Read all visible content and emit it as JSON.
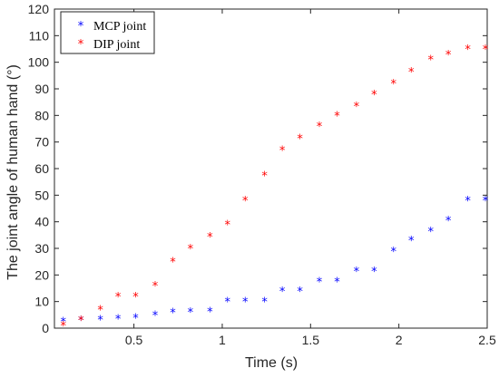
{
  "chart_data": {
    "type": "scatter",
    "xlabel": "Time (s)",
    "ylabel": "The joint angle of human hand (°)",
    "xlim": [
      0.05,
      2.5
    ],
    "ylim": [
      0,
      120
    ],
    "xticks": [
      0.5,
      1,
      1.5,
      2,
      2.5
    ],
    "yticks": [
      0,
      10,
      20,
      30,
      40,
      50,
      60,
      70,
      80,
      90,
      100,
      110,
      120
    ],
    "xtick_labels": [
      "0.5",
      "1",
      "1.5",
      "2",
      "2.5"
    ],
    "ytick_labels": [
      "0",
      "10",
      "20",
      "30",
      "40",
      "50",
      "60",
      "70",
      "80",
      "90",
      "100",
      "110",
      "120"
    ],
    "grid": false,
    "legend_position": "top-left",
    "marker": "*",
    "series": [
      {
        "name": "MCP joint",
        "color": "#0000ff",
        "x": [
          0.1,
          0.2,
          0.31,
          0.41,
          0.51,
          0.62,
          0.72,
          0.82,
          0.93,
          1.03,
          1.13,
          1.24,
          1.34,
          1.44,
          1.55,
          1.65,
          1.76,
          1.86,
          1.97,
          2.07,
          2.18,
          2.28,
          2.39,
          2.49
        ],
        "y": [
          2.5,
          3,
          3.2,
          3.5,
          4,
          5,
          6,
          6.2,
          6.3,
          10,
          10,
          10,
          14,
          14,
          17.5,
          17.5,
          21.5,
          21.5,
          29,
          33,
          36.5,
          40.5,
          48,
          48
        ]
      },
      {
        "name": "DIP joint",
        "color": "#ff0000",
        "x": [
          0.1,
          0.2,
          0.31,
          0.41,
          0.51,
          0.62,
          0.72,
          0.82,
          0.93,
          1.03,
          1.13,
          1.24,
          1.34,
          1.44,
          1.55,
          1.65,
          1.76,
          1.86,
          1.97,
          2.07,
          2.18,
          2.28,
          2.39,
          2.49
        ],
        "y": [
          1,
          3,
          7,
          12,
          12,
          16,
          25,
          30,
          34.5,
          39,
          48,
          57.5,
          67,
          71.5,
          76,
          80,
          83.5,
          88,
          92,
          96.5,
          101,
          103,
          105,
          105
        ]
      }
    ]
  }
}
